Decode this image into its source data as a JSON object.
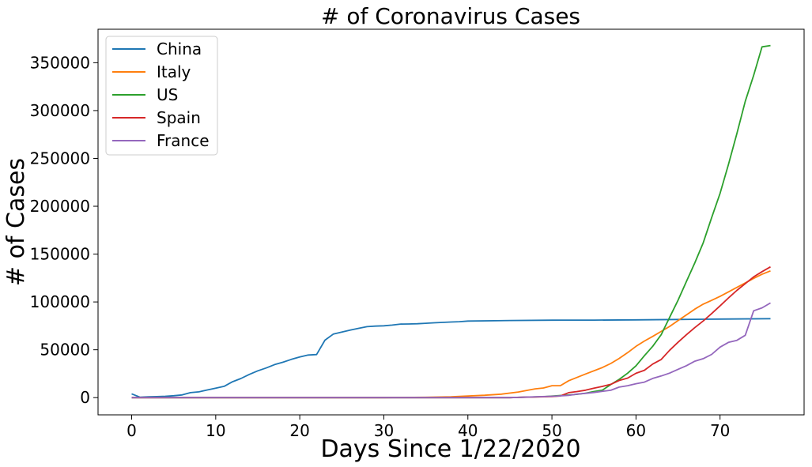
{
  "chart_data": {
    "type": "line",
    "title": "# of Coronavirus Cases",
    "xlabel": "Days Since 1/22/2020",
    "ylabel": "# of Cases",
    "xlim": [
      -4,
      80
    ],
    "ylim": [
      -18000,
      385000
    ],
    "x_ticks": [
      0,
      10,
      20,
      30,
      40,
      50,
      60,
      70
    ],
    "y_ticks": [
      0,
      50000,
      100000,
      150000,
      200000,
      250000,
      300000,
      350000
    ],
    "x_tick_labels": [
      "0",
      "10",
      "20",
      "30",
      "40",
      "50",
      "60",
      "70"
    ],
    "y_tick_labels": [
      "0",
      "50000",
      "100000",
      "150000",
      "200000",
      "250000",
      "300000",
      "350000"
    ],
    "grid": false,
    "legend_position": "upper-left",
    "series": [
      {
        "name": "China",
        "color": "#1f77b4",
        "points": [
          [
            0,
            4000
          ],
          [
            1,
            400
          ],
          [
            2,
            800
          ],
          [
            3,
            1100
          ],
          [
            4,
            1400
          ],
          [
            5,
            2000
          ],
          [
            6,
            2800
          ],
          [
            7,
            5200
          ],
          [
            8,
            6000
          ],
          [
            9,
            8000
          ],
          [
            10,
            9800
          ],
          [
            11,
            11800
          ],
          [
            12,
            16600
          ],
          [
            13,
            20000
          ],
          [
            14,
            24300
          ],
          [
            15,
            28000
          ],
          [
            16,
            31000
          ],
          [
            17,
            34500
          ],
          [
            18,
            37000
          ],
          [
            19,
            40000
          ],
          [
            20,
            42500
          ],
          [
            21,
            44500
          ],
          [
            22,
            45000
          ],
          [
            23,
            60000
          ],
          [
            24,
            66500
          ],
          [
            25,
            68500
          ],
          [
            26,
            70500
          ],
          [
            27,
            72400
          ],
          [
            28,
            74200
          ],
          [
            29,
            74700
          ],
          [
            30,
            75100
          ],
          [
            31,
            75800
          ],
          [
            32,
            76900
          ],
          [
            33,
            77000
          ],
          [
            34,
            77200
          ],
          [
            35,
            77700
          ],
          [
            36,
            78200
          ],
          [
            37,
            78600
          ],
          [
            38,
            79000
          ],
          [
            39,
            79400
          ],
          [
            40,
            80000
          ],
          [
            45,
            80600
          ],
          [
            50,
            80900
          ],
          [
            55,
            81000
          ],
          [
            60,
            81300
          ],
          [
            65,
            81700
          ],
          [
            70,
            82100
          ],
          [
            76,
            82500
          ]
        ]
      },
      {
        "name": "Italy",
        "color": "#ff7f0e",
        "points": [
          [
            0,
            0
          ],
          [
            30,
            0
          ],
          [
            35,
            300
          ],
          [
            38,
            900
          ],
          [
            40,
            1700
          ],
          [
            42,
            2500
          ],
          [
            44,
            3600
          ],
          [
            46,
            5900
          ],
          [
            48,
            9200
          ],
          [
            49,
            10100
          ],
          [
            50,
            12500
          ],
          [
            51,
            12500
          ],
          [
            52,
            17700
          ],
          [
            54,
            24700
          ],
          [
            56,
            31500
          ],
          [
            57,
            35700
          ],
          [
            58,
            41000
          ],
          [
            59,
            47000
          ],
          [
            60,
            53600
          ],
          [
            61,
            59100
          ],
          [
            62,
            64000
          ],
          [
            63,
            69200
          ],
          [
            64,
            74400
          ],
          [
            65,
            80500
          ],
          [
            66,
            86500
          ],
          [
            67,
            92500
          ],
          [
            68,
            97700
          ],
          [
            69,
            101700
          ],
          [
            70,
            105800
          ],
          [
            71,
            110500
          ],
          [
            72,
            115200
          ],
          [
            73,
            119800
          ],
          [
            74,
            124600
          ],
          [
            75,
            128900
          ],
          [
            76,
            132500
          ]
        ]
      },
      {
        "name": "US",
        "color": "#2ca02c",
        "points": [
          [
            0,
            0
          ],
          [
            45,
            0
          ],
          [
            49,
            1000
          ],
          [
            50,
            1600
          ],
          [
            51,
            2200
          ],
          [
            52,
            2700
          ],
          [
            53,
            3500
          ],
          [
            54,
            4600
          ],
          [
            55,
            6400
          ],
          [
            56,
            7800
          ],
          [
            57,
            13700
          ],
          [
            58,
            19100
          ],
          [
            59,
            25500
          ],
          [
            60,
            33300
          ],
          [
            61,
            43800
          ],
          [
            62,
            53700
          ],
          [
            63,
            65800
          ],
          [
            64,
            83800
          ],
          [
            65,
            101700
          ],
          [
            66,
            121500
          ],
          [
            67,
            140900
          ],
          [
            68,
            161800
          ],
          [
            69,
            188200
          ],
          [
            70,
            213400
          ],
          [
            71,
            243500
          ],
          [
            72,
            276000
          ],
          [
            73,
            309700
          ],
          [
            74,
            336800
          ],
          [
            75,
            366600
          ],
          [
            76,
            368000
          ]
        ]
      },
      {
        "name": "Spain",
        "color": "#d62728",
        "points": [
          [
            0,
            0
          ],
          [
            45,
            0
          ],
          [
            50,
            1200
          ],
          [
            51,
            1700
          ],
          [
            52,
            5200
          ],
          [
            53,
            6400
          ],
          [
            54,
            7800
          ],
          [
            55,
            9900
          ],
          [
            56,
            11700
          ],
          [
            57,
            13900
          ],
          [
            58,
            17900
          ],
          [
            59,
            20400
          ],
          [
            60,
            25400
          ],
          [
            61,
            28600
          ],
          [
            62,
            35100
          ],
          [
            63,
            39900
          ],
          [
            64,
            49500
          ],
          [
            65,
            57800
          ],
          [
            66,
            65700
          ],
          [
            67,
            73200
          ],
          [
            68,
            80100
          ],
          [
            69,
            87900
          ],
          [
            70,
            95900
          ],
          [
            71,
            104100
          ],
          [
            72,
            112100
          ],
          [
            73,
            119200
          ],
          [
            74,
            126200
          ],
          [
            75,
            131600
          ],
          [
            76,
            136700
          ]
        ]
      },
      {
        "name": "France",
        "color": "#9467bd",
        "points": [
          [
            0,
            0
          ],
          [
            45,
            0
          ],
          [
            50,
            1400
          ],
          [
            51,
            1800
          ],
          [
            52,
            2300
          ],
          [
            53,
            3700
          ],
          [
            54,
            4500
          ],
          [
            55,
            5400
          ],
          [
            56,
            6600
          ],
          [
            57,
            7700
          ],
          [
            58,
            11000
          ],
          [
            59,
            12500
          ],
          [
            60,
            14500
          ],
          [
            61,
            16200
          ],
          [
            62,
            20100
          ],
          [
            63,
            22600
          ],
          [
            64,
            25600
          ],
          [
            65,
            29600
          ],
          [
            66,
            33400
          ],
          [
            67,
            38100
          ],
          [
            68,
            40700
          ],
          [
            69,
            45200
          ],
          [
            70,
            52800
          ],
          [
            71,
            57700
          ],
          [
            72,
            59900
          ],
          [
            73,
            65200
          ],
          [
            74,
            90800
          ],
          [
            75,
            93800
          ],
          [
            76,
            98900
          ]
        ]
      }
    ]
  }
}
